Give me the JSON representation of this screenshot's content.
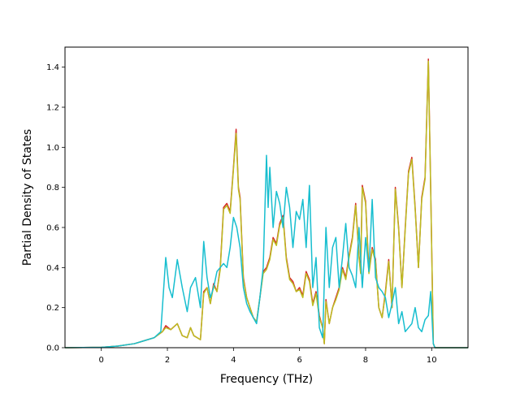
{
  "chart_data": {
    "type": "line",
    "title": "",
    "xlabel": "Frequency (THz)",
    "ylabel": "Partial Density of States",
    "xlim": [
      -1.1,
      11.1
    ],
    "ylim": [
      0,
      1.5
    ],
    "xticks": [
      0,
      2,
      4,
      6,
      8,
      10
    ],
    "yticks": [
      0.0,
      0.2,
      0.4,
      0.6,
      0.8,
      1.0,
      1.2,
      1.4
    ],
    "xtick_labels": [
      "0",
      "2",
      "4",
      "6",
      "8",
      "10"
    ],
    "ytick_labels": [
      "0.0",
      "0.2",
      "0.4",
      "0.6",
      "0.8",
      "1.0",
      "1.2",
      "1.4"
    ],
    "grid": false,
    "legend": "none",
    "series": [
      {
        "color": "#d62728",
        "x": [
          -1.1,
          0,
          0.5,
          1,
          1.3,
          1.6,
          1.85,
          1.95,
          2.1,
          2.3,
          2.45,
          2.6,
          2.7,
          2.8,
          2.9,
          3.0,
          3.1,
          3.2,
          3.3,
          3.4,
          3.5,
          3.6,
          3.7,
          3.8,
          3.9,
          4.0,
          4.08,
          4.15,
          4.2,
          4.3,
          4.4,
          4.5,
          4.6,
          4.7,
          4.8,
          4.9,
          5.0,
          5.1,
          5.2,
          5.3,
          5.4,
          5.5,
          5.6,
          5.7,
          5.8,
          5.9,
          6.0,
          6.1,
          6.2,
          6.3,
          6.4,
          6.5,
          6.6,
          6.7,
          6.75,
          6.8,
          6.9,
          7.0,
          7.1,
          7.2,
          7.3,
          7.4,
          7.5,
          7.6,
          7.7,
          7.8,
          7.85,
          7.9,
          8.0,
          8.1,
          8.2,
          8.3,
          8.4,
          8.5,
          8.6,
          8.7,
          8.8,
          8.9,
          9.0,
          9.1,
          9.2,
          9.3,
          9.4,
          9.5,
          9.6,
          9.7,
          9.8,
          9.9,
          9.97,
          10.05,
          10.1,
          10.2,
          11.1
        ],
        "y": [
          0,
          0.002,
          0.008,
          0.02,
          0.035,
          0.05,
          0.08,
          0.11,
          0.09,
          0.12,
          0.06,
          0.05,
          0.1,
          0.06,
          0.05,
          0.04,
          0.28,
          0.3,
          0.22,
          0.32,
          0.28,
          0.4,
          0.7,
          0.72,
          0.68,
          0.9,
          1.09,
          0.8,
          0.75,
          0.35,
          0.25,
          0.2,
          0.15,
          0.13,
          0.25,
          0.38,
          0.4,
          0.45,
          0.55,
          0.52,
          0.62,
          0.66,
          0.45,
          0.35,
          0.33,
          0.28,
          0.3,
          0.26,
          0.38,
          0.34,
          0.22,
          0.28,
          0.16,
          0.1,
          0.02,
          0.24,
          0.12,
          0.2,
          0.25,
          0.3,
          0.4,
          0.35,
          0.46,
          0.55,
          0.72,
          0.46,
          0.38,
          0.81,
          0.73,
          0.38,
          0.5,
          0.44,
          0.2,
          0.15,
          0.28,
          0.44,
          0.2,
          0.8,
          0.6,
          0.3,
          0.6,
          0.88,
          0.95,
          0.7,
          0.4,
          0.75,
          0.85,
          1.44,
          0.8,
          0.02,
          0,
          0,
          0
        ]
      },
      {
        "color": "#bcbd22",
        "x": [
          -1.1,
          0,
          0.5,
          1,
          1.3,
          1.6,
          1.85,
          1.95,
          2.1,
          2.3,
          2.45,
          2.6,
          2.7,
          2.8,
          2.9,
          3.0,
          3.1,
          3.2,
          3.3,
          3.4,
          3.5,
          3.6,
          3.7,
          3.8,
          3.9,
          4.0,
          4.08,
          4.15,
          4.2,
          4.3,
          4.4,
          4.5,
          4.6,
          4.7,
          4.8,
          4.9,
          5.0,
          5.1,
          5.2,
          5.3,
          5.4,
          5.5,
          5.6,
          5.7,
          5.8,
          5.9,
          6.0,
          6.1,
          6.2,
          6.3,
          6.4,
          6.5,
          6.6,
          6.7,
          6.75,
          6.8,
          6.9,
          7.0,
          7.1,
          7.2,
          7.3,
          7.4,
          7.5,
          7.6,
          7.7,
          7.8,
          7.85,
          7.9,
          8.0,
          8.1,
          8.2,
          8.3,
          8.4,
          8.5,
          8.6,
          8.7,
          8.8,
          8.9,
          9.0,
          9.1,
          9.2,
          9.3,
          9.4,
          9.5,
          9.6,
          9.7,
          9.8,
          9.9,
          9.97,
          10.05,
          10.1,
          10.2,
          11.1
        ],
        "y": [
          0,
          0.002,
          0.008,
          0.02,
          0.035,
          0.05,
          0.08,
          0.1,
          0.09,
          0.12,
          0.06,
          0.05,
          0.1,
          0.06,
          0.05,
          0.04,
          0.27,
          0.3,
          0.22,
          0.31,
          0.28,
          0.39,
          0.69,
          0.71,
          0.67,
          0.89,
          1.07,
          0.79,
          0.74,
          0.34,
          0.25,
          0.2,
          0.15,
          0.13,
          0.25,
          0.37,
          0.39,
          0.44,
          0.54,
          0.51,
          0.61,
          0.65,
          0.44,
          0.34,
          0.32,
          0.28,
          0.29,
          0.25,
          0.37,
          0.33,
          0.21,
          0.27,
          0.15,
          0.1,
          0.02,
          0.23,
          0.12,
          0.2,
          0.24,
          0.29,
          0.39,
          0.34,
          0.45,
          0.54,
          0.71,
          0.45,
          0.37,
          0.8,
          0.72,
          0.37,
          0.49,
          0.43,
          0.2,
          0.15,
          0.27,
          0.43,
          0.2,
          0.79,
          0.59,
          0.3,
          0.59,
          0.87,
          0.94,
          0.69,
          0.4,
          0.74,
          0.84,
          1.43,
          0.79,
          0.02,
          0,
          0,
          0
        ]
      },
      {
        "color": "#17becf",
        "x": [
          -1.1,
          0,
          0.5,
          1,
          1.3,
          1.6,
          1.8,
          1.95,
          2.05,
          2.15,
          2.3,
          2.45,
          2.6,
          2.7,
          2.85,
          3.0,
          3.1,
          3.2,
          3.3,
          3.4,
          3.5,
          3.6,
          3.7,
          3.8,
          3.9,
          4.0,
          4.1,
          4.2,
          4.3,
          4.4,
          4.5,
          4.6,
          4.7,
          4.8,
          4.9,
          5.0,
          5.05,
          5.1,
          5.2,
          5.3,
          5.4,
          5.5,
          5.6,
          5.7,
          5.8,
          5.9,
          6.0,
          6.1,
          6.2,
          6.3,
          6.4,
          6.5,
          6.6,
          6.7,
          6.8,
          6.9,
          7.0,
          7.1,
          7.2,
          7.3,
          7.4,
          7.5,
          7.6,
          7.7,
          7.8,
          7.9,
          8.0,
          8.1,
          8.2,
          8.3,
          8.4,
          8.5,
          8.6,
          8.7,
          8.8,
          8.9,
          9.0,
          9.1,
          9.2,
          9.3,
          9.4,
          9.5,
          9.6,
          9.7,
          9.8,
          9.9,
          9.97,
          10.05,
          10.1,
          10.2,
          11.1
        ],
        "y": [
          0,
          0.002,
          0.008,
          0.02,
          0.035,
          0.05,
          0.08,
          0.45,
          0.3,
          0.25,
          0.44,
          0.3,
          0.18,
          0.3,
          0.35,
          0.2,
          0.53,
          0.35,
          0.25,
          0.3,
          0.38,
          0.4,
          0.42,
          0.4,
          0.5,
          0.65,
          0.6,
          0.5,
          0.3,
          0.22,
          0.18,
          0.15,
          0.12,
          0.25,
          0.4,
          0.96,
          0.7,
          0.9,
          0.6,
          0.78,
          0.72,
          0.6,
          0.8,
          0.7,
          0.5,
          0.68,
          0.64,
          0.74,
          0.5,
          0.81,
          0.3,
          0.45,
          0.1,
          0.05,
          0.6,
          0.3,
          0.5,
          0.55,
          0.3,
          0.45,
          0.62,
          0.4,
          0.36,
          0.3,
          0.6,
          0.3,
          0.55,
          0.38,
          0.74,
          0.35,
          0.3,
          0.28,
          0.25,
          0.15,
          0.22,
          0.3,
          0.12,
          0.18,
          0.08,
          0.1,
          0.12,
          0.2,
          0.1,
          0.08,
          0.14,
          0.16,
          0.28,
          0.02,
          0,
          0,
          0
        ]
      }
    ]
  }
}
